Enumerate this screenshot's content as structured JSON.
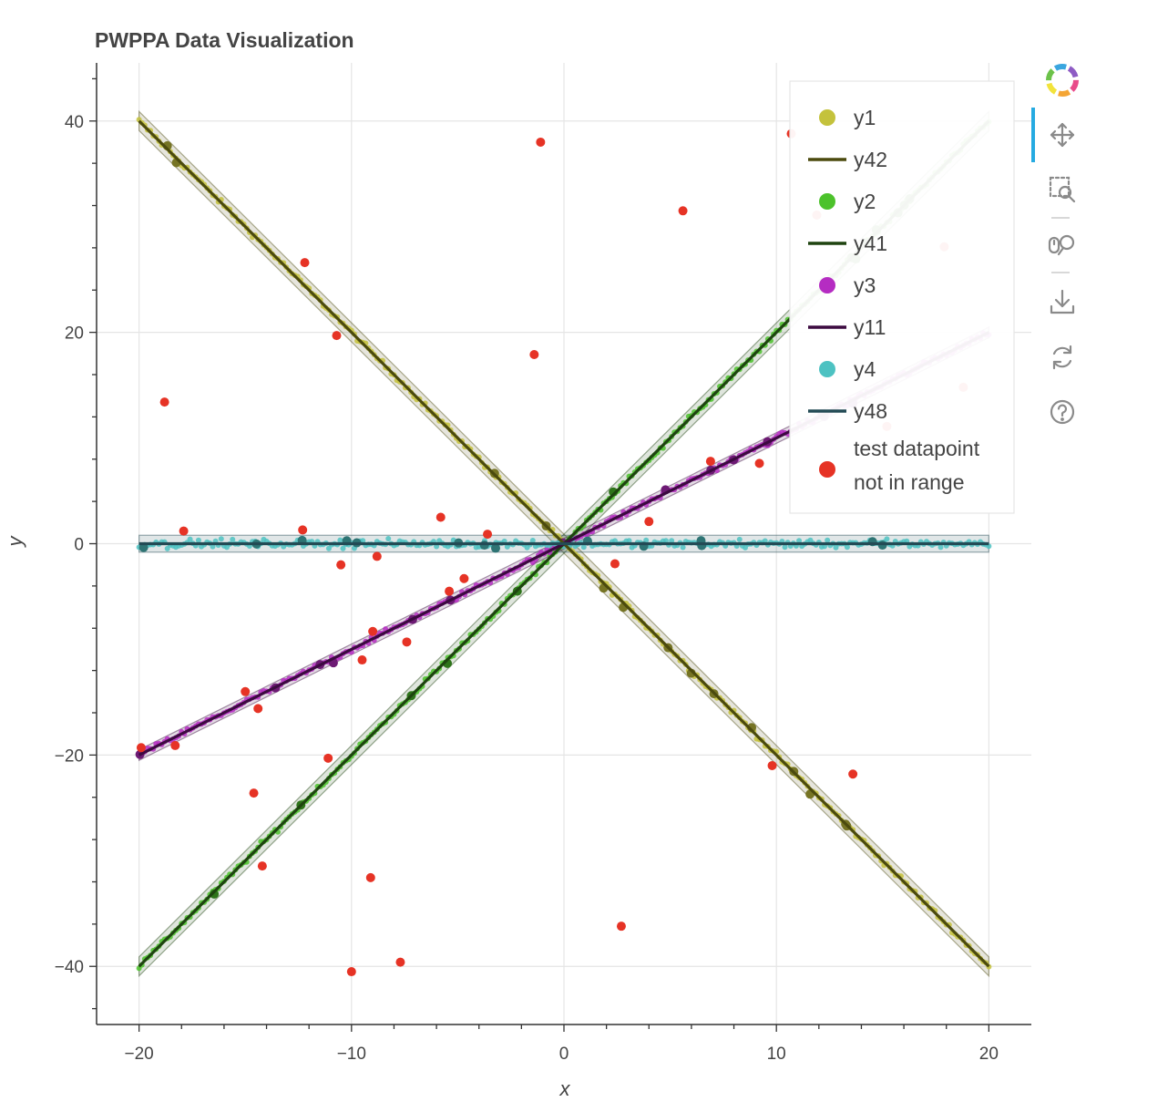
{
  "title": "PWPPA Data Visualization",
  "toolbar": {
    "tools": [
      {
        "name": "bokeh-logo-icon"
      },
      {
        "name": "pan-tool-icon",
        "active": true
      },
      {
        "name": "box-zoom-tool-icon"
      },
      {
        "name": "wheel-zoom-tool-icon"
      },
      {
        "name": "save-tool-icon"
      },
      {
        "name": "reset-tool-icon"
      },
      {
        "name": "help-tool-icon"
      }
    ]
  },
  "chart_data": {
    "type": "scatter",
    "title": "PWPPA Data Visualization",
    "xlabel": "x",
    "ylabel": "y",
    "xlim": [
      -22,
      22
    ],
    "ylim": [
      -45.5,
      45.5
    ],
    "xticks": [
      -20,
      -10,
      0,
      10,
      20
    ],
    "xtick_labels": [
      "−20",
      "−10",
      "0",
      "10",
      "20"
    ],
    "yticks": [
      -40,
      -20,
      0,
      20,
      40
    ],
    "ytick_labels": [
      "−40",
      "−20",
      "0",
      "20",
      "40"
    ],
    "grid": true,
    "legend_position": "top-right",
    "series": [
      {
        "name": "y1",
        "kind": "scatter",
        "color": "#c4c23c",
        "fit": {
          "slope": -2,
          "intercept": 0
        },
        "x_range": [
          -20,
          20
        ]
      },
      {
        "name": "y42",
        "kind": "line",
        "color": "#4b4a0e",
        "slope": -2,
        "intercept": 0,
        "band": 0.9,
        "x_range": [
          -20,
          20
        ]
      },
      {
        "name": "y2",
        "kind": "scatter",
        "color": "#4cc22b",
        "fit": {
          "slope": 2,
          "intercept": 0
        },
        "x_range": [
          -20,
          20
        ]
      },
      {
        "name": "y41",
        "kind": "line",
        "color": "#1e4410",
        "slope": 2,
        "intercept": 0,
        "band": 0.9,
        "x_range": [
          -20,
          20
        ]
      },
      {
        "name": "y3",
        "kind": "scatter",
        "color": "#b52cc2",
        "fit": {
          "slope": 1,
          "intercept": 0
        },
        "x_range": [
          -20,
          20
        ]
      },
      {
        "name": "y11",
        "kind": "line",
        "color": "#3c0a40",
        "slope": 1,
        "intercept": 0,
        "band": 0.5,
        "x_range": [
          -20,
          20
        ]
      },
      {
        "name": "y4",
        "kind": "scatter",
        "color": "#4dc2c2",
        "fit": {
          "slope": 0,
          "intercept": 0
        },
        "x_range": [
          -20,
          20
        ]
      },
      {
        "name": "y48",
        "kind": "line",
        "color": "#234b55",
        "slope": 0,
        "intercept": 0,
        "band": 0.8,
        "x_range": [
          -20,
          20
        ]
      },
      {
        "name": "test datapoint not in range",
        "kind": "outlier",
        "color": "#e63325",
        "points": [
          [
            -19.9,
            -19.3
          ],
          [
            -18.8,
            13.4
          ],
          [
            -18.3,
            -19.1
          ],
          [
            -17.9,
            1.2
          ],
          [
            -15.0,
            -14.0
          ],
          [
            -14.6,
            -23.6
          ],
          [
            -14.4,
            -15.6
          ],
          [
            -14.2,
            -30.5
          ],
          [
            -12.3,
            1.3
          ],
          [
            -12.2,
            26.6
          ],
          [
            -11.1,
            -20.3
          ],
          [
            -10.7,
            19.7
          ],
          [
            -10.5,
            -2.0
          ],
          [
            -10.0,
            -40.5
          ],
          [
            -9.5,
            -11.0
          ],
          [
            -9.1,
            -31.6
          ],
          [
            -9.0,
            -8.3
          ],
          [
            -8.8,
            -1.2
          ],
          [
            -7.7,
            -39.6
          ],
          [
            -7.4,
            -9.3
          ],
          [
            -5.8,
            2.5
          ],
          [
            -5.4,
            -4.5
          ],
          [
            -4.7,
            -3.3
          ],
          [
            -1.4,
            17.9
          ],
          [
            -1.1,
            38.0
          ],
          [
            2.7,
            -36.2
          ],
          [
            5.6,
            31.5
          ],
          [
            6.9,
            7.8
          ],
          [
            9.2,
            7.6
          ],
          [
            9.8,
            -21.0
          ],
          [
            10.7,
            38.8
          ],
          [
            11.9,
            31.1
          ],
          [
            13.6,
            -21.8
          ],
          [
            15.2,
            11.1
          ],
          [
            17.9,
            28.1
          ],
          [
            18.8,
            14.8
          ],
          [
            4.0,
            2.1
          ],
          [
            -3.6,
            0.9
          ],
          [
            2.4,
            -1.9
          ]
        ]
      }
    ]
  }
}
